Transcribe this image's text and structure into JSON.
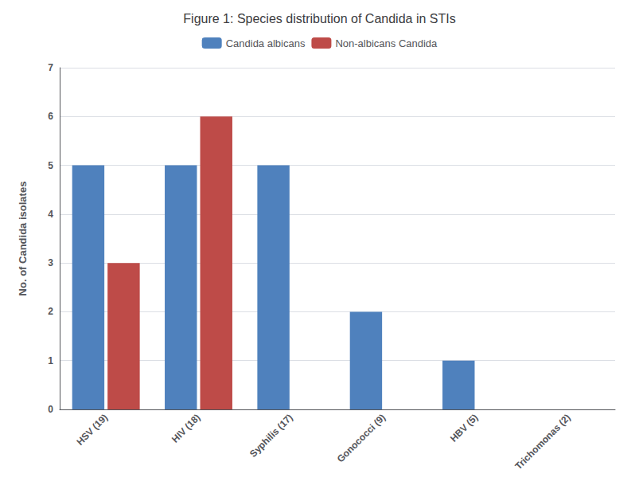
{
  "chart_data": {
    "type": "bar",
    "title": "Figure 1: Species distribution of Candida in STIs",
    "categories": [
      "HSV (19)",
      "HIV (18)",
      "Syphilis (17)",
      "Gonococci (9)",
      "HBV (5)",
      "Trichomonas (2)"
    ],
    "series": [
      {
        "name": "Candida albicans",
        "color": "#4F81BD",
        "values": [
          5,
          5,
          5,
          2,
          1,
          0
        ]
      },
      {
        "name": "Non-albicans Candida",
        "color": "#BE4B48",
        "values": [
          3,
          6,
          0,
          0,
          0,
          0
        ]
      }
    ],
    "ylabel": "No. of Candida isolates",
    "ylim": [
      0,
      7
    ],
    "yticks": [
      0,
      1,
      2,
      3,
      4,
      5,
      6,
      7
    ],
    "grid": true,
    "legend": "top"
  }
}
